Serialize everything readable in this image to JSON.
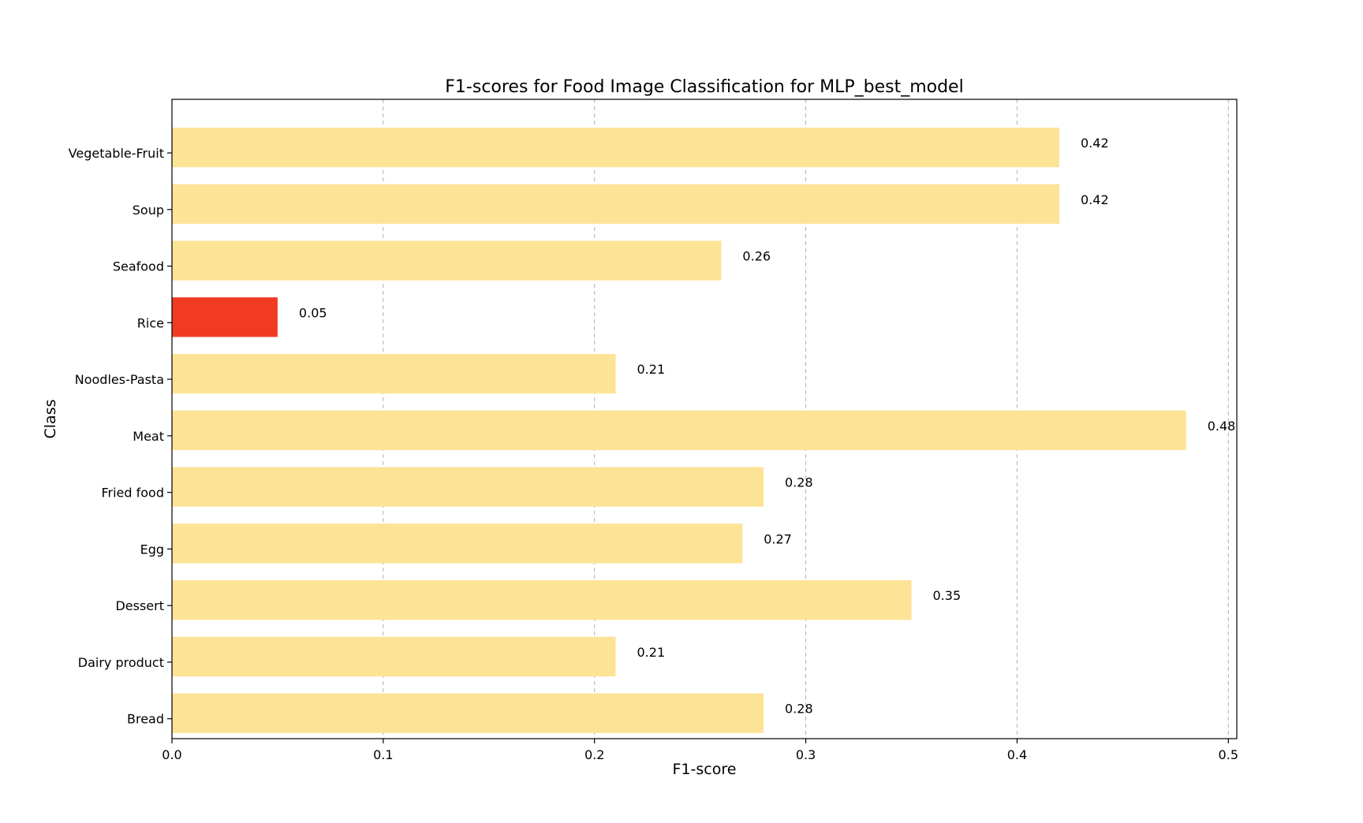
{
  "chart_data": {
    "type": "bar",
    "orientation": "horizontal",
    "title": "F1-scores for Food Image Classification for MLP_best_model",
    "xlabel": "F1-score",
    "ylabel": "Class",
    "xlim": [
      0,
      0.504
    ],
    "xticks": [
      0.0,
      0.1,
      0.2,
      0.3,
      0.4,
      0.5
    ],
    "xtick_labels": [
      "0.0",
      "0.1",
      "0.2",
      "0.3",
      "0.4",
      "0.5"
    ],
    "grid": "x-dashed",
    "categories": [
      "Vegetable-Fruit",
      "Soup",
      "Seafood",
      "Rice",
      "Noodles-Pasta",
      "Meat",
      "Fried food",
      "Egg",
      "Dessert",
      "Dairy product",
      "Bread"
    ],
    "values": [
      0.42,
      0.42,
      0.26,
      0.05,
      0.21,
      0.48,
      0.28,
      0.27,
      0.35,
      0.21,
      0.28
    ],
    "value_labels": [
      "0.42",
      "0.42",
      "0.26",
      "0.05",
      "0.21",
      "0.48",
      "0.28",
      "0.27",
      "0.35",
      "0.21",
      "0.28"
    ],
    "bar_colors": [
      "#fde395",
      "#fde395",
      "#fde395",
      "#f03b22",
      "#fde395",
      "#fde395",
      "#fde395",
      "#fde395",
      "#fde395",
      "#fde395",
      "#fde395"
    ]
  }
}
